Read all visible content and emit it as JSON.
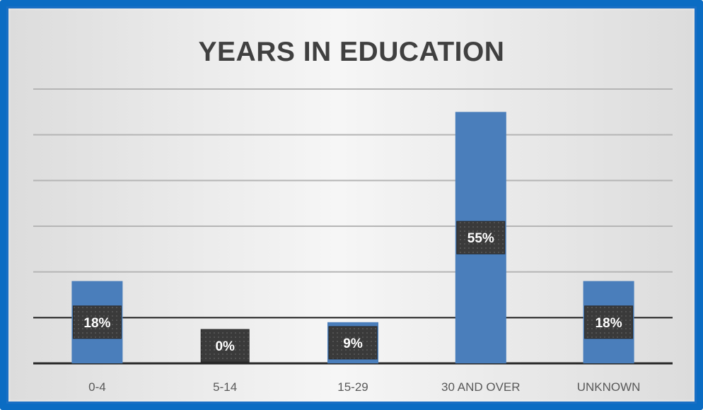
{
  "chart_data": {
    "type": "bar",
    "title": "YEARS IN EDUCATION",
    "xlabel": "",
    "ylabel": "",
    "categories": [
      "0-4",
      "5-14",
      "15-29",
      "30 AND OVER",
      "UNKNOWN"
    ],
    "values": [
      18,
      0,
      9,
      55,
      18
    ],
    "data_labels": [
      "18%",
      "0%",
      "9%",
      "55%",
      "18%"
    ],
    "ylim": [
      0,
      60
    ],
    "grid": true,
    "legend": "none",
    "colors": {
      "bar": "#4a7ebb",
      "label_box": "#3a3a3a",
      "frame": "#0b6cc3",
      "gridline": "#b5b5b5",
      "baseline": "#262626"
    }
  }
}
